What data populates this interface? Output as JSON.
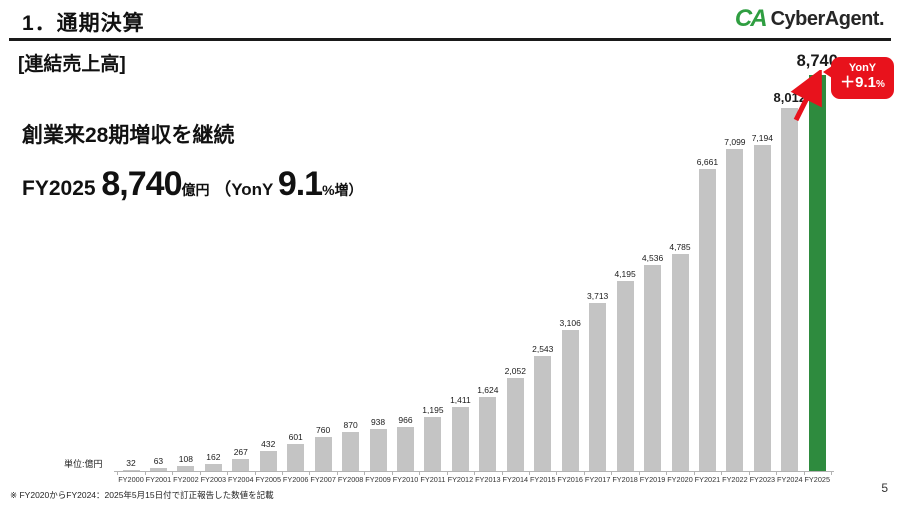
{
  "header": {
    "title": "1．通期決算",
    "logo": {
      "mark": "CA",
      "text": "CyberAgent."
    }
  },
  "content": {
    "subtitle": "[連結売上高]",
    "statement": "創業来28期増収を継続",
    "headline": {
      "fy": "FY2025 ",
      "value": "8,740",
      "unit": "億円",
      "paren_open": " （YonY ",
      "pct_value": "9.1",
      "paren_close": "%増）"
    }
  },
  "chart_data": {
    "type": "bar",
    "title": "連結売上高",
    "unit_label": "単位:億円",
    "categories": [
      "FY2000",
      "FY2001",
      "FY2002",
      "FY2003",
      "FY2004",
      "FY2005",
      "FY2006",
      "FY2007",
      "FY2008",
      "FY2009",
      "FY2010",
      "FY2011",
      "FY2012",
      "FY2013",
      "FY2014",
      "FY2015",
      "FY2016",
      "FY2017",
      "FY2018",
      "FY2019",
      "FY2020",
      "FY2021",
      "FY2022",
      "FY2023",
      "FY2024",
      "FY2025"
    ],
    "values": [
      32,
      63,
      108,
      162,
      267,
      432,
      601,
      760,
      870,
      938,
      966,
      1195,
      1411,
      1624,
      2052,
      2543,
      3106,
      3713,
      4195,
      4536,
      4785,
      6661,
      7099,
      7194,
      8012,
      8740
    ],
    "labels": [
      "32",
      "63",
      "108",
      "162",
      "267",
      "432",
      "601",
      "760",
      "870",
      "938",
      "966",
      "1,195",
      "1,411",
      "1,624",
      "2,052",
      "2,543",
      "3,106",
      "3,713",
      "4,195",
      "4,536",
      "4,785",
      "6,661",
      "7,099",
      "7,194",
      "8,012",
      "8,740"
    ],
    "ylim": [
      0,
      8740
    ],
    "grid": false,
    "legend": "none",
    "bar_color": "#c4c4c4",
    "highlight_color": "#2e8b3e",
    "highlight_index": 25,
    "emphasized_labels": {
      "medium": 24,
      "large": 25
    }
  },
  "callout": {
    "line1": "YonY",
    "line2_value": "＋9.1",
    "line2_pct": "%",
    "color": "#e8121c"
  },
  "footnote": "※ FY2020からFY2024：2025年5月15日付で訂正報告した数値を記載",
  "page_number": "5"
}
